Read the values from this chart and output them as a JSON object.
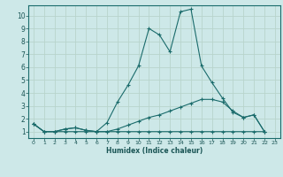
{
  "xlabel": "Humidex (Indice chaleur)",
  "background_color": "#cde8e8",
  "grid_color": "#b8d4cc",
  "line_color": "#1a6b6b",
  "xlim": [
    -0.5,
    23.5
  ],
  "ylim": [
    0.5,
    10.8
  ],
  "xticks": [
    0,
    1,
    2,
    3,
    4,
    5,
    6,
    7,
    8,
    9,
    10,
    11,
    12,
    13,
    14,
    15,
    16,
    17,
    18,
    19,
    20,
    21,
    22,
    23
  ],
  "yticks": [
    1,
    2,
    3,
    4,
    5,
    6,
    7,
    8,
    9,
    10
  ],
  "series1_x": [
    0,
    1,
    2,
    3,
    4,
    5,
    6,
    7,
    8,
    9,
    10,
    11,
    12,
    13,
    14,
    15,
    16,
    17,
    18,
    19,
    20,
    21,
    22
  ],
  "series1_y": [
    1.6,
    1.0,
    1.0,
    1.2,
    1.3,
    1.1,
    1.0,
    1.7,
    3.3,
    4.6,
    6.1,
    9.0,
    8.5,
    7.2,
    10.3,
    10.5,
    6.1,
    4.8,
    3.6,
    2.5,
    2.1,
    2.3,
    1.0
  ],
  "series2_x": [
    0,
    1,
    2,
    3,
    4,
    5,
    6,
    7,
    8,
    9,
    10,
    11,
    12,
    13,
    14,
    15,
    16,
    17,
    18,
    19,
    20,
    21,
    22
  ],
  "series2_y": [
    1.6,
    1.0,
    1.0,
    1.2,
    1.3,
    1.1,
    1.0,
    1.0,
    1.2,
    1.5,
    1.8,
    2.1,
    2.3,
    2.6,
    2.9,
    3.2,
    3.5,
    3.5,
    3.3,
    2.6,
    2.1,
    2.3,
    1.0
  ],
  "series3_x": [
    0,
    1,
    2,
    3,
    4,
    5,
    6,
    7,
    8,
    9,
    10,
    11,
    12,
    13,
    14,
    15,
    16,
    17,
    18,
    19,
    20,
    21,
    22
  ],
  "series3_y": [
    1.6,
    1.0,
    1.0,
    1.0,
    1.0,
    1.0,
    1.0,
    1.0,
    1.0,
    1.0,
    1.0,
    1.0,
    1.0,
    1.0,
    1.0,
    1.0,
    1.0,
    1.0,
    1.0,
    1.0,
    1.0,
    1.0,
    1.0
  ]
}
